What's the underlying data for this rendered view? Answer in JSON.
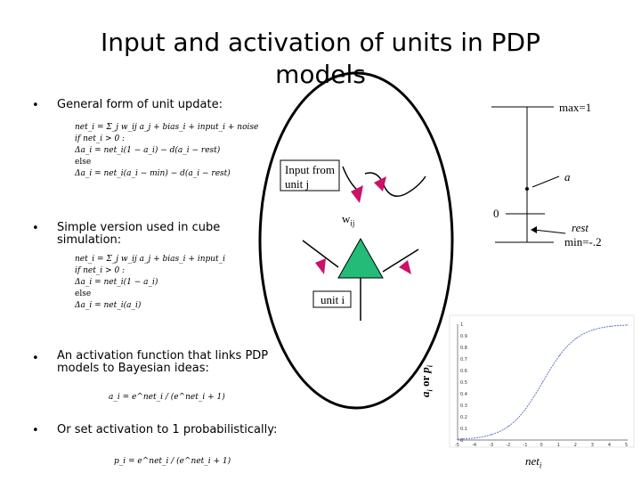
{
  "title": "Input and activation of units in PDP models",
  "bullets": [
    {
      "text": "General form of unit update:"
    },
    {
      "text": "Simple version used in cube simulation:"
    },
    {
      "text": "An activation function that links PDP models to Bayesian ideas:"
    },
    {
      "text": "Or set activation to 1 probabilistically:"
    }
  ],
  "equations": {
    "general": [
      "net_i = Σ_j w_ij a_j + bias_i + input_i + noise",
      "if net_i > 0 :",
      "Δa_i = net_i(1 − a_i) − d(a_i − rest)",
      "else",
      "Δa_i = net_i(a_i − min) − d(a_i − rest)"
    ],
    "simple": [
      "net_i = Σ_j w_ij a_j + bias_i + input_i",
      "if net_i > 0 :",
      "Δa_i = net_i(1 − a_i)",
      "else",
      "Δa_i = net_i(a_i)"
    ],
    "bayes": "a_i = e^net_i / (e^net_i + 1)",
    "prob": "p_i = e^net_i / (e^net_i + 1)"
  },
  "diagram": {
    "input_from": "Input from",
    "unit_j": "unit j",
    "wij": "w",
    "wij_sub": "ij",
    "unit_i": "unit i"
  },
  "activation_scale": {
    "max": "max=1",
    "a": "a",
    "zero": "0",
    "rest": "rest",
    "min": "min=-.2"
  },
  "sigmoid_chart": {
    "ylabel_a": "a",
    "ylabel_sub_i": "i",
    "ylabel_or": " or ",
    "ylabel_p": "p",
    "ylabel_sub_i2": "i",
    "xlabel": "net",
    "xlabel_sub": "i",
    "yticks": [
      "0",
      "0.1",
      "0.2",
      "0.3",
      "0.4",
      "0.5",
      "0.6",
      "0.7",
      "0.8",
      "0.9",
      "1"
    ],
    "xticks": [
      "-5",
      "-4",
      "-3",
      "-2",
      "-1",
      "0",
      "1",
      "2",
      "3",
      "4",
      "5"
    ]
  },
  "chart_data": {
    "type": "line",
    "x": [
      -5,
      -4,
      -3,
      -2,
      -1,
      0,
      1,
      2,
      3,
      4,
      5
    ],
    "series": [
      {
        "values": [
          0.007,
          0.018,
          0.047,
          0.119,
          0.269,
          0.5,
          0.731,
          0.881,
          0.953,
          0.982,
          0.993
        ]
      }
    ],
    "xlim": [
      -5,
      5
    ],
    "ylim": [
      0,
      1
    ],
    "grid": false
  },
  "colors": {
    "unit_fill": "#22bb77",
    "synapse": "#cc1166",
    "curve": "#6677cc",
    "circle": "#000000"
  }
}
